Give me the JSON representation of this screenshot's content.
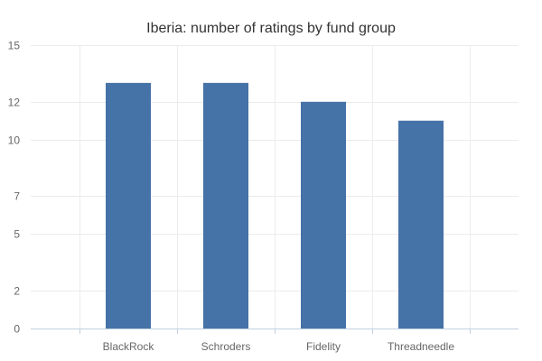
{
  "chart_data": {
    "type": "bar",
    "title": "Iberia: number of ratings by fund group",
    "xlabel": "",
    "ylabel": "",
    "categories": [
      "BlackRock",
      "Schroders",
      "Fidelity",
      "Threadneedle"
    ],
    "values": [
      13,
      13,
      12,
      11
    ],
    "ylim": [
      0,
      15
    ],
    "yticks": [
      0,
      2,
      5,
      7,
      10,
      12,
      15
    ],
    "ytick_labels": [
      "0",
      "2",
      "5",
      "7",
      "10",
      "12",
      "15"
    ],
    "bar_color": "#4572a7",
    "grid": true,
    "legend": "none"
  }
}
